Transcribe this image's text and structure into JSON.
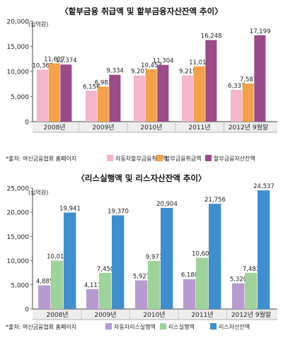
{
  "chart_data": [
    {
      "type": "bar",
      "title": "〈할부금융 취급액 및 할부금융자산잔액 추이〉",
      "ylabel": "(십억원)",
      "ylim": [
        0,
        20000
      ],
      "yticks": [
        "0",
        "5,000",
        "10,000",
        "15,000",
        "20,000"
      ],
      "categories": [
        "2008년",
        "2009년",
        "2010년",
        "2011년",
        "2012년 9월말"
      ],
      "series": [
        {
          "name": "자동차할부금융취급액",
          "values": [
            10365,
            6156,
            9201,
            9215,
            6337
          ],
          "labels": [
            "10,365",
            "6,156",
            "9,201",
            "9,215",
            "6,337"
          ],
          "color": "#f4b6cc"
        },
        {
          "name": "할부금융취급액",
          "values": [
            11617,
            6983,
            10453,
            11018,
            7587
          ],
          "labels": [
            "11,617",
            "6,983",
            "10,453",
            "11,018",
            "7,587"
          ],
          "color": "#f5a04a"
        },
        {
          "name": "할부금융자산잔액",
          "values": [
            11374,
            9334,
            11304,
            16248,
            17199
          ],
          "labels": [
            "11,374",
            "9,334",
            "11,304",
            "16,248",
            "17,199"
          ],
          "color": "#9c4a8a"
        }
      ],
      "source": "*출처: 여신금융협회 홈페이지"
    },
    {
      "type": "bar",
      "title": "〈리스실행액 및 리스자산잔액 추이〉",
      "ylabel": "(십억원)",
      "ylim": [
        0,
        25000
      ],
      "yticks": [
        "0",
        "5,000",
        "10,000",
        "15,000",
        "20,000",
        "25,000"
      ],
      "categories": [
        "2008년",
        "2009년",
        "2010년",
        "2011년",
        "2012년 9월말"
      ],
      "series": [
        {
          "name": "자동차리스실행액",
          "values": [
            4885,
            4117,
            5927,
            6180,
            5320
          ],
          "labels": [
            "4,885",
            "4,117",
            "5,927",
            "6,180",
            "5,320"
          ],
          "color": "#b79bd0"
        },
        {
          "name": "리스실행액",
          "values": [
            10017,
            7450,
            9977,
            10602,
            7483
          ],
          "labels": [
            "10,017",
            "7,450",
            "9,977",
            "10,602",
            "7,483"
          ],
          "color": "#9fd39a"
        },
        {
          "name": "리스자산잔액",
          "values": [
            19941,
            19370,
            20904,
            21756,
            24537
          ],
          "labels": [
            "19,941",
            "19,370",
            "20,904",
            "21,756",
            "24,537"
          ],
          "color": "#3f8fd0"
        }
      ],
      "source": "*출처: 여신금융협회 홈페이지"
    }
  ]
}
